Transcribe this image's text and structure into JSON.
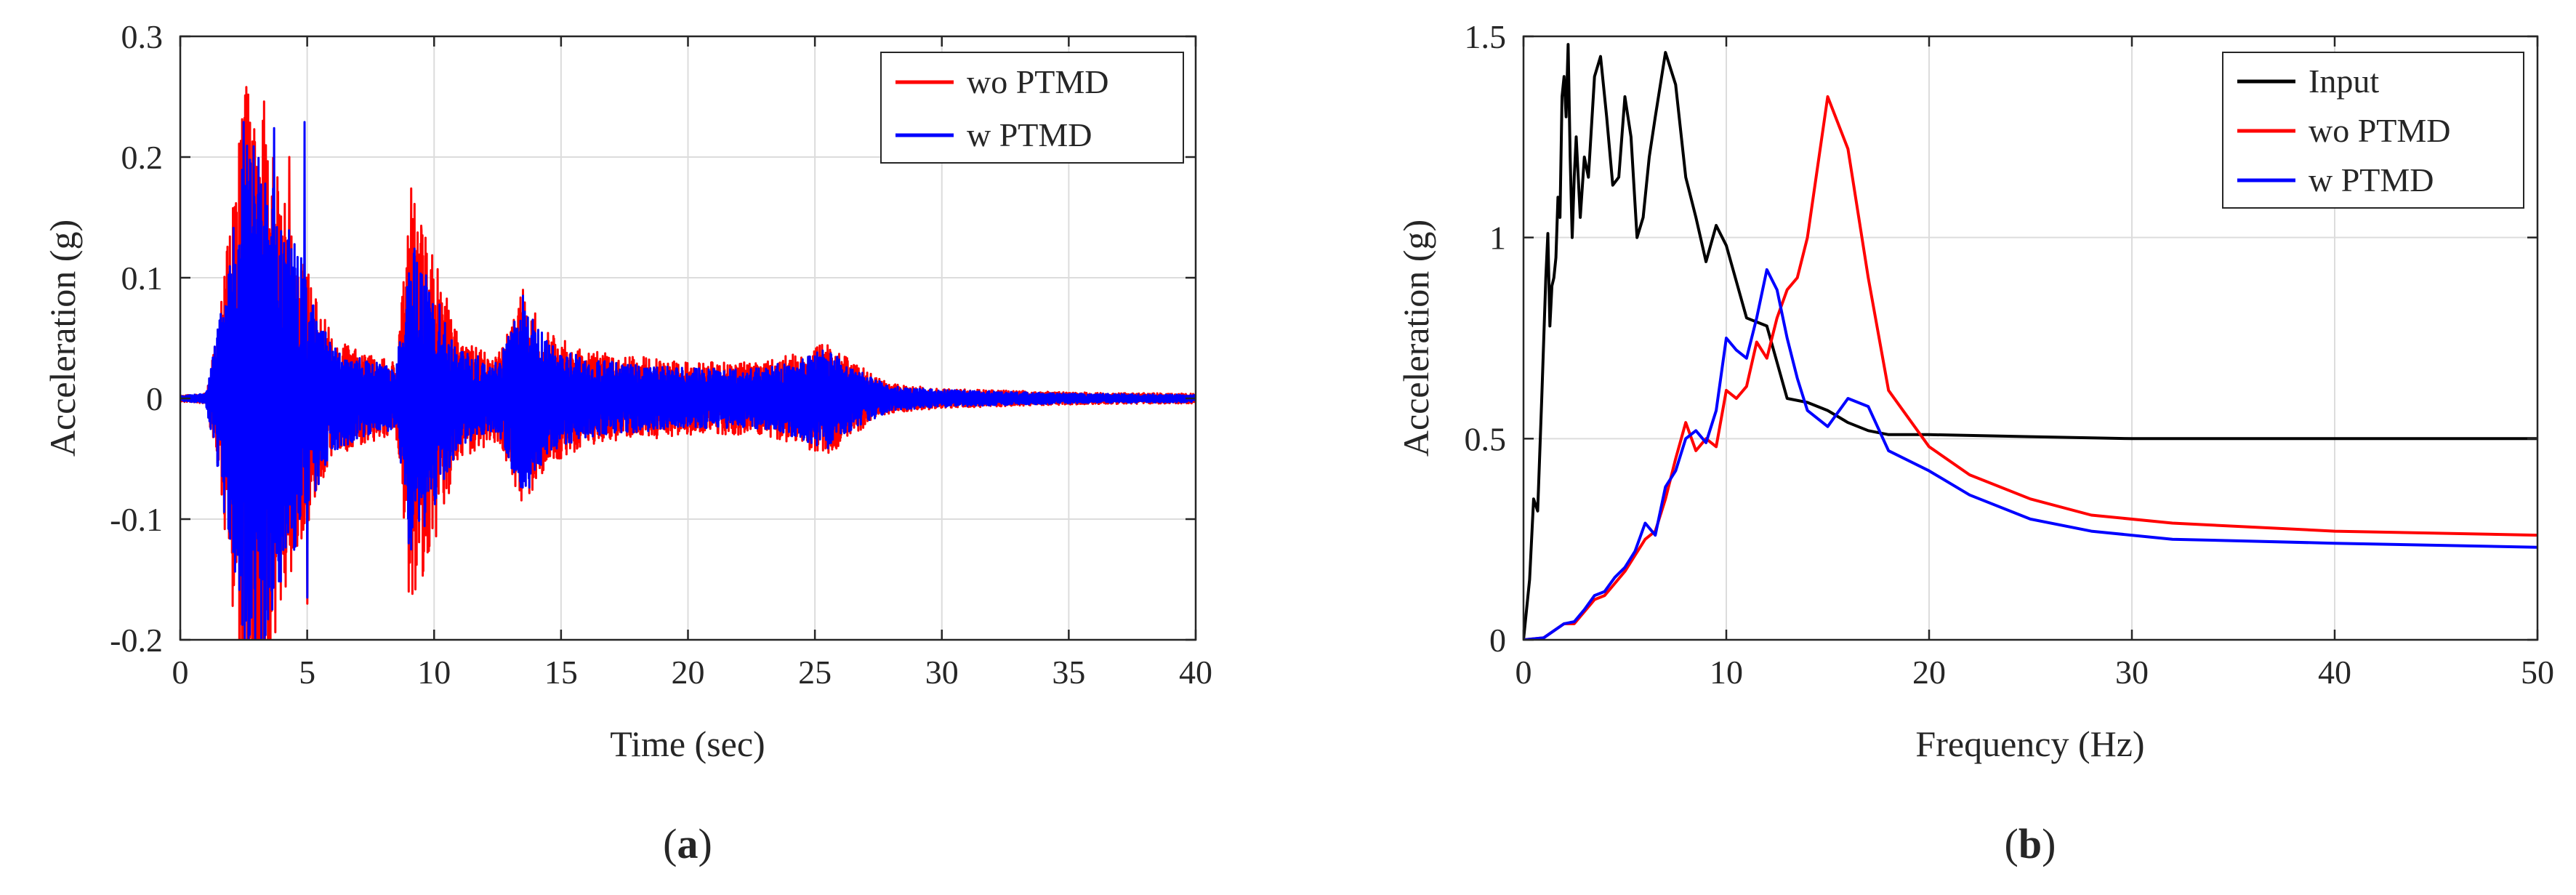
{
  "chart_data": [
    {
      "id": "a",
      "type": "line",
      "panel_label": "a",
      "title": "",
      "xlabel": "Time (sec)",
      "ylabel": "Acceleration (g)",
      "xlim": [
        0,
        40
      ],
      "ylim": [
        -0.2,
        0.3
      ],
      "xticks": [
        0,
        5,
        10,
        15,
        20,
        25,
        30,
        35,
        40
      ],
      "xtick_labels": [
        "0",
        "5",
        "10",
        "15",
        "20",
        "25",
        "30",
        "35",
        "40"
      ],
      "yticks": [
        -0.2,
        -0.1,
        0,
        0.1,
        0.2,
        0.3
      ],
      "ytick_labels": [
        "-0.2",
        "-0.1",
        "0",
        "0.1",
        "0.2",
        "0.3"
      ],
      "grid": true,
      "legend_position": "top-right",
      "series": [
        {
          "name": "wo PTMD",
          "color": "#ff0000",
          "envelope": [
            [
              0,
              0.003
            ],
            [
              1.0,
              0.004
            ],
            [
              1.5,
              0.06
            ],
            [
              2.2,
              0.2
            ],
            [
              2.6,
              0.26
            ],
            [
              3.4,
              0.24
            ],
            [
              4.0,
              0.17
            ],
            [
              4.6,
              0.13
            ],
            [
              5.1,
              0.1
            ],
            [
              6.0,
              0.05
            ],
            [
              7.0,
              0.04
            ],
            [
              8.5,
              0.03
            ],
            [
              9.1,
              0.175
            ],
            [
              10.0,
              0.12
            ],
            [
              11.0,
              0.05
            ],
            [
              12.5,
              0.035
            ],
            [
              13.5,
              0.09
            ],
            [
              14.5,
              0.055
            ],
            [
              16.0,
              0.04
            ],
            [
              18.0,
              0.035
            ],
            [
              20.0,
              0.03
            ],
            [
              23.0,
              0.03
            ],
            [
              25.5,
              0.048
            ],
            [
              26.5,
              0.03
            ],
            [
              28.0,
              0.012
            ],
            [
              30.0,
              0.008
            ],
            [
              35.0,
              0.005
            ],
            [
              40.0,
              0.004
            ]
          ],
          "spikes": [
            [
              2.6,
              0.258
            ],
            [
              2.7,
              -0.195
            ],
            [
              3.3,
              0.246
            ],
            [
              3.6,
              -0.176
            ],
            [
              4.3,
              0.2
            ],
            [
              5.0,
              -0.17
            ],
            [
              9.0,
              -0.16
            ],
            [
              9.1,
              0.174
            ],
            [
              9.5,
              0.139
            ],
            [
              13.5,
              0.09
            ]
          ]
        },
        {
          "name": "w PTMD",
          "color": "#0000ff",
          "envelope": [
            [
              0,
              0.002
            ],
            [
              1.0,
              0.004
            ],
            [
              1.5,
              0.062
            ],
            [
              2.2,
              0.17
            ],
            [
              2.6,
              0.22
            ],
            [
              3.4,
              0.2
            ],
            [
              4.0,
              0.15
            ],
            [
              4.6,
              0.13
            ],
            [
              5.1,
              0.09
            ],
            [
              6.0,
              0.045
            ],
            [
              7.0,
              0.035
            ],
            [
              8.5,
              0.025
            ],
            [
              9.1,
              0.13
            ],
            [
              10.0,
              0.09
            ],
            [
              11.0,
              0.04
            ],
            [
              12.5,
              0.03
            ],
            [
              13.5,
              0.085
            ],
            [
              14.5,
              0.045
            ],
            [
              16.0,
              0.033
            ],
            [
              18.0,
              0.028
            ],
            [
              20.0,
              0.025
            ],
            [
              23.0,
              0.025
            ],
            [
              25.5,
              0.042
            ],
            [
              26.5,
              0.025
            ],
            [
              28.0,
              0.01
            ],
            [
              30.0,
              0.007
            ],
            [
              35.0,
              0.004
            ],
            [
              40.0,
              0.003
            ]
          ],
          "spikes": [
            [
              2.5,
              0.229
            ],
            [
              2.6,
              -0.155
            ],
            [
              3.7,
              0.224
            ],
            [
              4.9,
              0.229
            ],
            [
              5.0,
              -0.165
            ],
            [
              3.9,
              -0.13
            ],
            [
              9.0,
              -0.12
            ],
            [
              9.2,
              0.12
            ],
            [
              13.5,
              0.085
            ]
          ]
        }
      ]
    },
    {
      "id": "b",
      "type": "line",
      "panel_label": "b",
      "title": "",
      "xlabel": "Frequency (Hz)",
      "ylabel": "Acceleration (g)",
      "xlim": [
        0,
        50
      ],
      "ylim": [
        0,
        1.5
      ],
      "xticks": [
        0,
        10,
        20,
        30,
        40,
        50
      ],
      "xtick_labels": [
        "0",
        "10",
        "20",
        "30",
        "40",
        "50"
      ],
      "yticks": [
        0,
        0.5,
        1,
        1.5
      ],
      "ytick_labels": [
        "0",
        "0.5",
        "1",
        "1.5"
      ],
      "grid": true,
      "legend_position": "top-right",
      "series": [
        {
          "name": "Input",
          "color": "#000000",
          "x": [
            0,
            0.3,
            0.5,
            0.7,
            0.9,
            1.0,
            1.1,
            1.2,
            1.3,
            1.4,
            1.5,
            1.6,
            1.7,
            1.8,
            1.9,
            2.0,
            2.1,
            2.2,
            2.3,
            2.4,
            2.5,
            2.6,
            2.8,
            3.0,
            3.2,
            3.5,
            3.8,
            4.1,
            4.4,
            4.7,
            5.0,
            5.3,
            5.6,
            5.9,
            6.2,
            6.5,
            7.0,
            7.5,
            8.0,
            8.5,
            9.0,
            9.5,
            10.0,
            11.0,
            12.0,
            13.0,
            14.0,
            15.0,
            16.0,
            17.0,
            18.0,
            20.0,
            25.0,
            30.0,
            40.0,
            50.0
          ],
          "y": [
            0.0,
            0.15,
            0.35,
            0.32,
            0.6,
            0.75,
            0.9,
            1.01,
            0.78,
            0.88,
            0.9,
            0.95,
            1.1,
            1.05,
            1.35,
            1.4,
            1.3,
            1.48,
            1.2,
            1.0,
            1.15,
            1.25,
            1.05,
            1.2,
            1.15,
            1.4,
            1.45,
            1.3,
            1.13,
            1.15,
            1.35,
            1.25,
            1.0,
            1.05,
            1.2,
            1.3,
            1.46,
            1.38,
            1.15,
            1.05,
            0.94,
            1.03,
            0.98,
            0.8,
            0.78,
            0.6,
            0.59,
            0.57,
            0.54,
            0.52,
            0.51,
            0.51,
            0.505,
            0.5,
            0.5,
            0.5
          ]
        },
        {
          "name": "wo PTMD",
          "color": "#ff0000",
          "x": [
            0,
            1.0,
            2.0,
            2.5,
            3.0,
            3.5,
            4.0,
            4.5,
            5.0,
            5.5,
            6.0,
            6.5,
            7.0,
            7.5,
            8.0,
            8.5,
            9.0,
            9.5,
            10.0,
            10.5,
            11.0,
            11.5,
            12.0,
            12.5,
            13.0,
            13.5,
            14.0,
            15.0,
            16.0,
            17.0,
            18.0,
            20.0,
            22.0,
            25.0,
            28.0,
            32.0,
            40.0,
            50.0
          ],
          "y": [
            0.0,
            0.005,
            0.04,
            0.04,
            0.07,
            0.1,
            0.11,
            0.14,
            0.17,
            0.21,
            0.25,
            0.27,
            0.35,
            0.45,
            0.54,
            0.47,
            0.5,
            0.48,
            0.62,
            0.6,
            0.63,
            0.74,
            0.7,
            0.8,
            0.87,
            0.9,
            1.0,
            1.35,
            1.22,
            0.9,
            0.62,
            0.48,
            0.41,
            0.35,
            0.31,
            0.29,
            0.27,
            0.26
          ]
        },
        {
          "name": "w PTMD",
          "color": "#0000ff",
          "x": [
            0,
            1.0,
            2.0,
            2.5,
            3.0,
            3.5,
            4.0,
            4.5,
            5.0,
            5.5,
            6.0,
            6.5,
            7.0,
            7.5,
            8.0,
            8.5,
            9.0,
            9.5,
            10.0,
            10.5,
            11.0,
            11.5,
            12.0,
            12.5,
            13.0,
            13.5,
            14.0,
            15.0,
            16.0,
            17.0,
            18.0,
            20.0,
            22.0,
            25.0,
            28.0,
            32.0,
            40.0,
            50.0
          ],
          "y": [
            0.0,
            0.005,
            0.04,
            0.045,
            0.075,
            0.11,
            0.12,
            0.155,
            0.18,
            0.22,
            0.29,
            0.26,
            0.38,
            0.42,
            0.5,
            0.52,
            0.49,
            0.57,
            0.75,
            0.72,
            0.7,
            0.8,
            0.92,
            0.87,
            0.75,
            0.65,
            0.57,
            0.53,
            0.6,
            0.58,
            0.47,
            0.42,
            0.36,
            0.3,
            0.27,
            0.25,
            0.24,
            0.23
          ]
        }
      ]
    }
  ]
}
